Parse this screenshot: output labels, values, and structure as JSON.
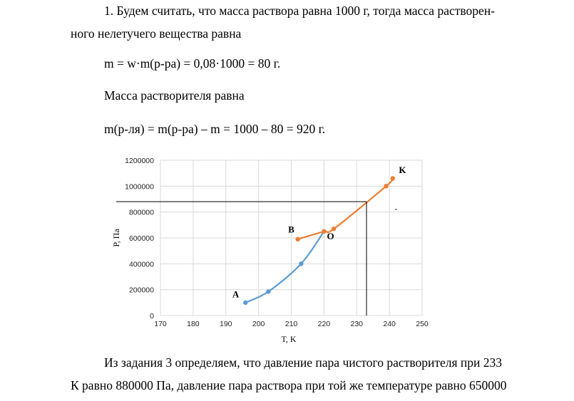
{
  "text": {
    "line1": "1. Будем считать, что масса раствора равна 1000 г, тогда масса растворен-",
    "line2": "ного нелетучего вещества равна",
    "formula1": "m = w·m(р-ра) = 0,08·1000 = 80 г.",
    "line3": "Масса растворителя равна",
    "formula2": "m(р-ля) = m(р-ра) – m = 1000 – 80 = 920 г.",
    "line4": "Из задания 3 определяем, что давление пара чистого растворителя при 233",
    "line5": "К равно 880000 Па, давление пара раствора при той же температуре равно 650000"
  },
  "chart_data": {
    "type": "line",
    "xlabel": "T, K",
    "ylabel": "P, Па",
    "xlim": [
      170,
      250
    ],
    "ylim": [
      0,
      1200000
    ],
    "x_ticks": [
      "170",
      "180",
      "190",
      "200",
      "210",
      "220",
      "230",
      "240",
      "250"
    ],
    "y_ticks": [
      "0",
      "200000",
      "400000",
      "600000",
      "800000",
      "1000000",
      "1200000"
    ],
    "grid": true,
    "series": [
      {
        "color": "#5b9bd5",
        "x": [
          196,
          203,
          213,
          220
        ],
        "y": [
          100000,
          185000,
          400000,
          650000
        ]
      },
      {
        "color": "#ed7d31",
        "x": [
          212,
          220,
          223,
          239,
          241
        ],
        "y": [
          590000,
          650000,
          670000,
          1000000,
          1060000
        ]
      }
    ],
    "point_labels": [
      {
        "text": "A",
        "x": 193,
        "y": 140000
      },
      {
        "text": "B",
        "x": 210,
        "y": 640000
      },
      {
        "text": "O",
        "x": 222,
        "y": 590000
      },
      {
        "text": "K",
        "x": 244,
        "y": 1100000
      }
    ],
    "reference_point": {
      "x": 233,
      "y": 880000
    },
    "dot": {
      "x": 242,
      "y": 820000
    }
  }
}
